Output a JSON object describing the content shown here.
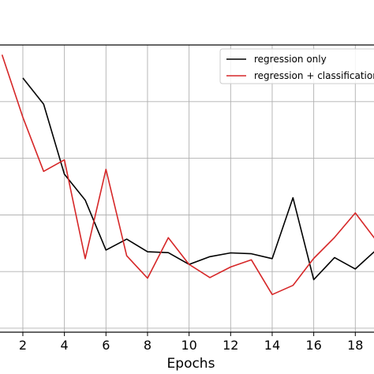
{
  "chart_data": {
    "type": "line",
    "title": "",
    "xlabel": "Epochs",
    "ylabel": "",
    "xlim": [
      0.9,
      18.9
    ],
    "ylim": [
      0,
      1
    ],
    "x_ticks": [
      2,
      4,
      6,
      8,
      10,
      12,
      14,
      16,
      18
    ],
    "grid": true,
    "legend_position": "top-right",
    "series": [
      {
        "name": "regression only",
        "color": "#000000",
        "x": [
          2,
          3,
          4,
          5,
          6,
          7,
          8,
          9,
          10,
          11,
          12,
          13,
          14,
          15,
          16,
          17,
          18,
          19
        ],
        "y": [
          0.885,
          0.794,
          0.55,
          0.46,
          0.286,
          0.324,
          0.28,
          0.277,
          0.236,
          0.263,
          0.276,
          0.273,
          0.256,
          0.468,
          0.183,
          0.26,
          0.22,
          0.286
        ]
      },
      {
        "name": "regression + classification",
        "color": "#d62728",
        "x": [
          1,
          2,
          3,
          4,
          5,
          6,
          7,
          8,
          9,
          10,
          11,
          12,
          13,
          14,
          15,
          16,
          17,
          18,
          19
        ],
        "y": [
          0.966,
          0.748,
          0.56,
          0.6,
          0.256,
          0.567,
          0.266,
          0.188,
          0.329,
          0.236,
          0.19,
          0.227,
          0.252,
          0.131,
          0.163,
          0.257,
          0.33,
          0.415,
          0.32
        ]
      }
    ]
  }
}
